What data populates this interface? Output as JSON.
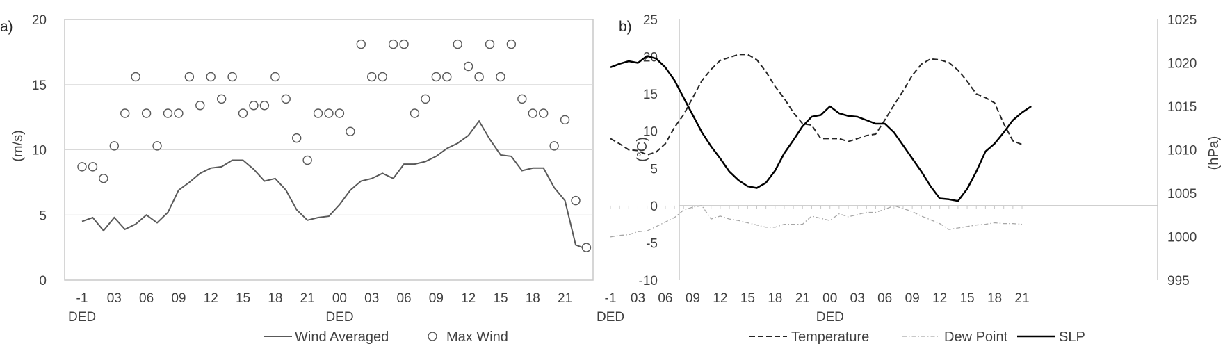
{
  "chart_data": [
    {
      "panel_label": "a)",
      "type": "line+scatter",
      "ylabel": "(m/s)",
      "ylim": [
        0,
        20
      ],
      "yticks": [
        "0",
        "5",
        "10",
        "15",
        "20"
      ],
      "x_index_range": [
        0,
        46
      ],
      "xtick_labels": [
        {
          "i": 0,
          "label": "-1"
        },
        {
          "i": 3,
          "label": "03"
        },
        {
          "i": 6,
          "label": "06"
        },
        {
          "i": 9,
          "label": "09"
        },
        {
          "i": 12,
          "label": "12"
        },
        {
          "i": 15,
          "label": "15"
        },
        {
          "i": 18,
          "label": "18"
        },
        {
          "i": 21,
          "label": "21"
        },
        {
          "i": 24,
          "label": "00"
        },
        {
          "i": 27,
          "label": "03"
        },
        {
          "i": 30,
          "label": "06"
        },
        {
          "i": 33,
          "label": "09"
        },
        {
          "i": 36,
          "label": "12"
        },
        {
          "i": 39,
          "label": "15"
        },
        {
          "i": 42,
          "label": "18"
        },
        {
          "i": 45,
          "label": "21"
        }
      ],
      "day_labels": [
        {
          "i": 0,
          "label": "DED"
        },
        {
          "i": 24,
          "label": "DED"
        }
      ],
      "grid_y": true,
      "legend_position": "bottom",
      "series": [
        {
          "name": "Wind Averaged",
          "style": "line",
          "color": "#595959",
          "values": [
            4.5,
            4.8,
            3.8,
            4.8,
            3.9,
            4.3,
            5.0,
            4.4,
            5.2,
            6.9,
            7.5,
            8.2,
            8.6,
            8.7,
            9.2,
            9.2,
            8.5,
            7.6,
            7.8,
            6.9,
            5.4,
            4.6,
            4.8,
            4.9,
            5.8,
            6.9,
            7.6,
            7.8,
            8.2,
            7.8,
            8.9,
            8.9,
            9.1,
            9.5,
            10.1,
            10.5,
            11.1,
            12.2,
            10.8,
            9.6,
            9.5,
            8.4,
            8.6,
            8.6,
            7.1,
            6.1,
            2.7,
            2.4
          ]
        },
        {
          "name": "Max Wind",
          "style": "markers",
          "color": "#595959",
          "values": [
            8.7,
            8.7,
            7.8,
            10.3,
            12.8,
            15.6,
            12.8,
            10.3,
            12.8,
            12.8,
            15.6,
            13.4,
            15.6,
            13.9,
            15.6,
            12.8,
            13.4,
            13.4,
            15.6,
            13.9,
            10.9,
            9.2,
            12.8,
            12.8,
            12.8,
            11.4,
            18.1,
            15.6,
            15.6,
            18.1,
            18.1,
            12.8,
            13.9,
            15.6,
            15.6,
            18.1,
            16.4,
            15.6,
            18.1,
            15.6,
            18.1,
            13.9,
            12.8,
            12.8,
            10.3,
            12.3,
            6.1,
            2.5
          ]
        }
      ]
    },
    {
      "panel_label": "b)",
      "type": "line",
      "ylabel": "(°C)",
      "ylim": [
        -10,
        25
      ],
      "yticks": [
        "-10",
        "-5",
        "0",
        "5",
        "10",
        "15",
        "20",
        "25"
      ],
      "y2label": "(hPa)",
      "y2lim": [
        995,
        1025
      ],
      "y2ticks": [
        "995",
        "1000",
        "1005",
        "1010",
        "1015",
        "1020",
        "1025"
      ],
      "x_index_range": [
        0,
        44
      ],
      "xtick_labels": [
        {
          "i": 0,
          "label": "-1"
        },
        {
          "i": 3,
          "label": "03"
        },
        {
          "i": 6,
          "label": "06"
        },
        {
          "i": 9,
          "label": "09"
        },
        {
          "i": 12,
          "label": "12"
        },
        {
          "i": 15,
          "label": "15"
        },
        {
          "i": 18,
          "label": "18"
        },
        {
          "i": 21,
          "label": "21"
        },
        {
          "i": 24,
          "label": "00"
        },
        {
          "i": 27,
          "label": "03"
        },
        {
          "i": 30,
          "label": "06"
        },
        {
          "i": 33,
          "label": "09"
        },
        {
          "i": 36,
          "label": "12"
        },
        {
          "i": 39,
          "label": "15"
        },
        {
          "i": 42,
          "label": "18"
        },
        {
          "i": 45,
          "label": "21"
        }
      ],
      "day_labels": [
        {
          "i": 0,
          "label": "DED"
        },
        {
          "i": 24,
          "label": "DED"
        }
      ],
      "grid_y": false,
      "legend_position": "bottom",
      "series": [
        {
          "name": "Temperature",
          "axis": "left",
          "style": "dashed",
          "color": "#262626",
          "values": [
            9.0,
            8.3,
            7.5,
            7.4,
            6.8,
            7.2,
            8.3,
            10.5,
            12.2,
            14.5,
            16.8,
            18.3,
            19.5,
            19.9,
            20.3,
            20.3,
            19.6,
            18.0,
            16.0,
            14.4,
            12.5,
            11.0,
            10.8,
            9.0,
            9.0,
            9.0,
            8.6,
            9.0,
            9.4,
            9.6,
            11.5,
            13.5,
            15.4,
            17.5,
            19.0,
            19.7,
            19.6,
            19.2,
            18.2,
            16.7,
            15.0,
            14.5,
            13.8,
            11.0,
            8.7,
            8.2
          ]
        },
        {
          "name": "Dew Point",
          "axis": "left",
          "style": "dash-dot",
          "color": "#a6a6a6",
          "values": [
            -4.2,
            -4.0,
            -3.9,
            -3.5,
            -3.4,
            -2.8,
            -2.2,
            -1.6,
            -0.6,
            -0.2,
            0.0,
            -1.8,
            -1.4,
            -1.8,
            -2.0,
            -2.3,
            -2.6,
            -2.9,
            -2.9,
            -2.5,
            -2.5,
            -2.5,
            -1.4,
            -1.7,
            -2.0,
            -1.1,
            -1.5,
            -1.2,
            -0.9,
            -0.9,
            -0.5,
            0.0,
            -0.4,
            -0.8,
            -1.4,
            -1.9,
            -2.4,
            -3.2,
            -3.0,
            -2.8,
            -2.6,
            -2.5,
            -2.3,
            -2.4,
            -2.4,
            -2.5
          ]
        },
        {
          "name": "SLP",
          "axis": "right",
          "style": "solid",
          "color": "#000000",
          "values": [
            1019.5,
            1019.9,
            1020.2,
            1020.0,
            1020.8,
            1020.5,
            1019.5,
            1018.0,
            1016.0,
            1014.0,
            1012.0,
            1010.4,
            1009.0,
            1007.5,
            1006.5,
            1005.8,
            1005.6,
            1006.2,
            1007.6,
            1009.6,
            1011.1,
            1012.7,
            1013.8,
            1014.0,
            1015.0,
            1014.2,
            1013.9,
            1013.8,
            1013.4,
            1013.0,
            1013.0,
            1012.0,
            1010.5,
            1009.0,
            1007.5,
            1005.8,
            1004.4,
            1004.3,
            1004.1,
            1005.5,
            1007.5,
            1009.8,
            1010.7,
            1012.0,
            1013.4,
            1014.3,
            1015.0
          ]
        }
      ]
    }
  ]
}
